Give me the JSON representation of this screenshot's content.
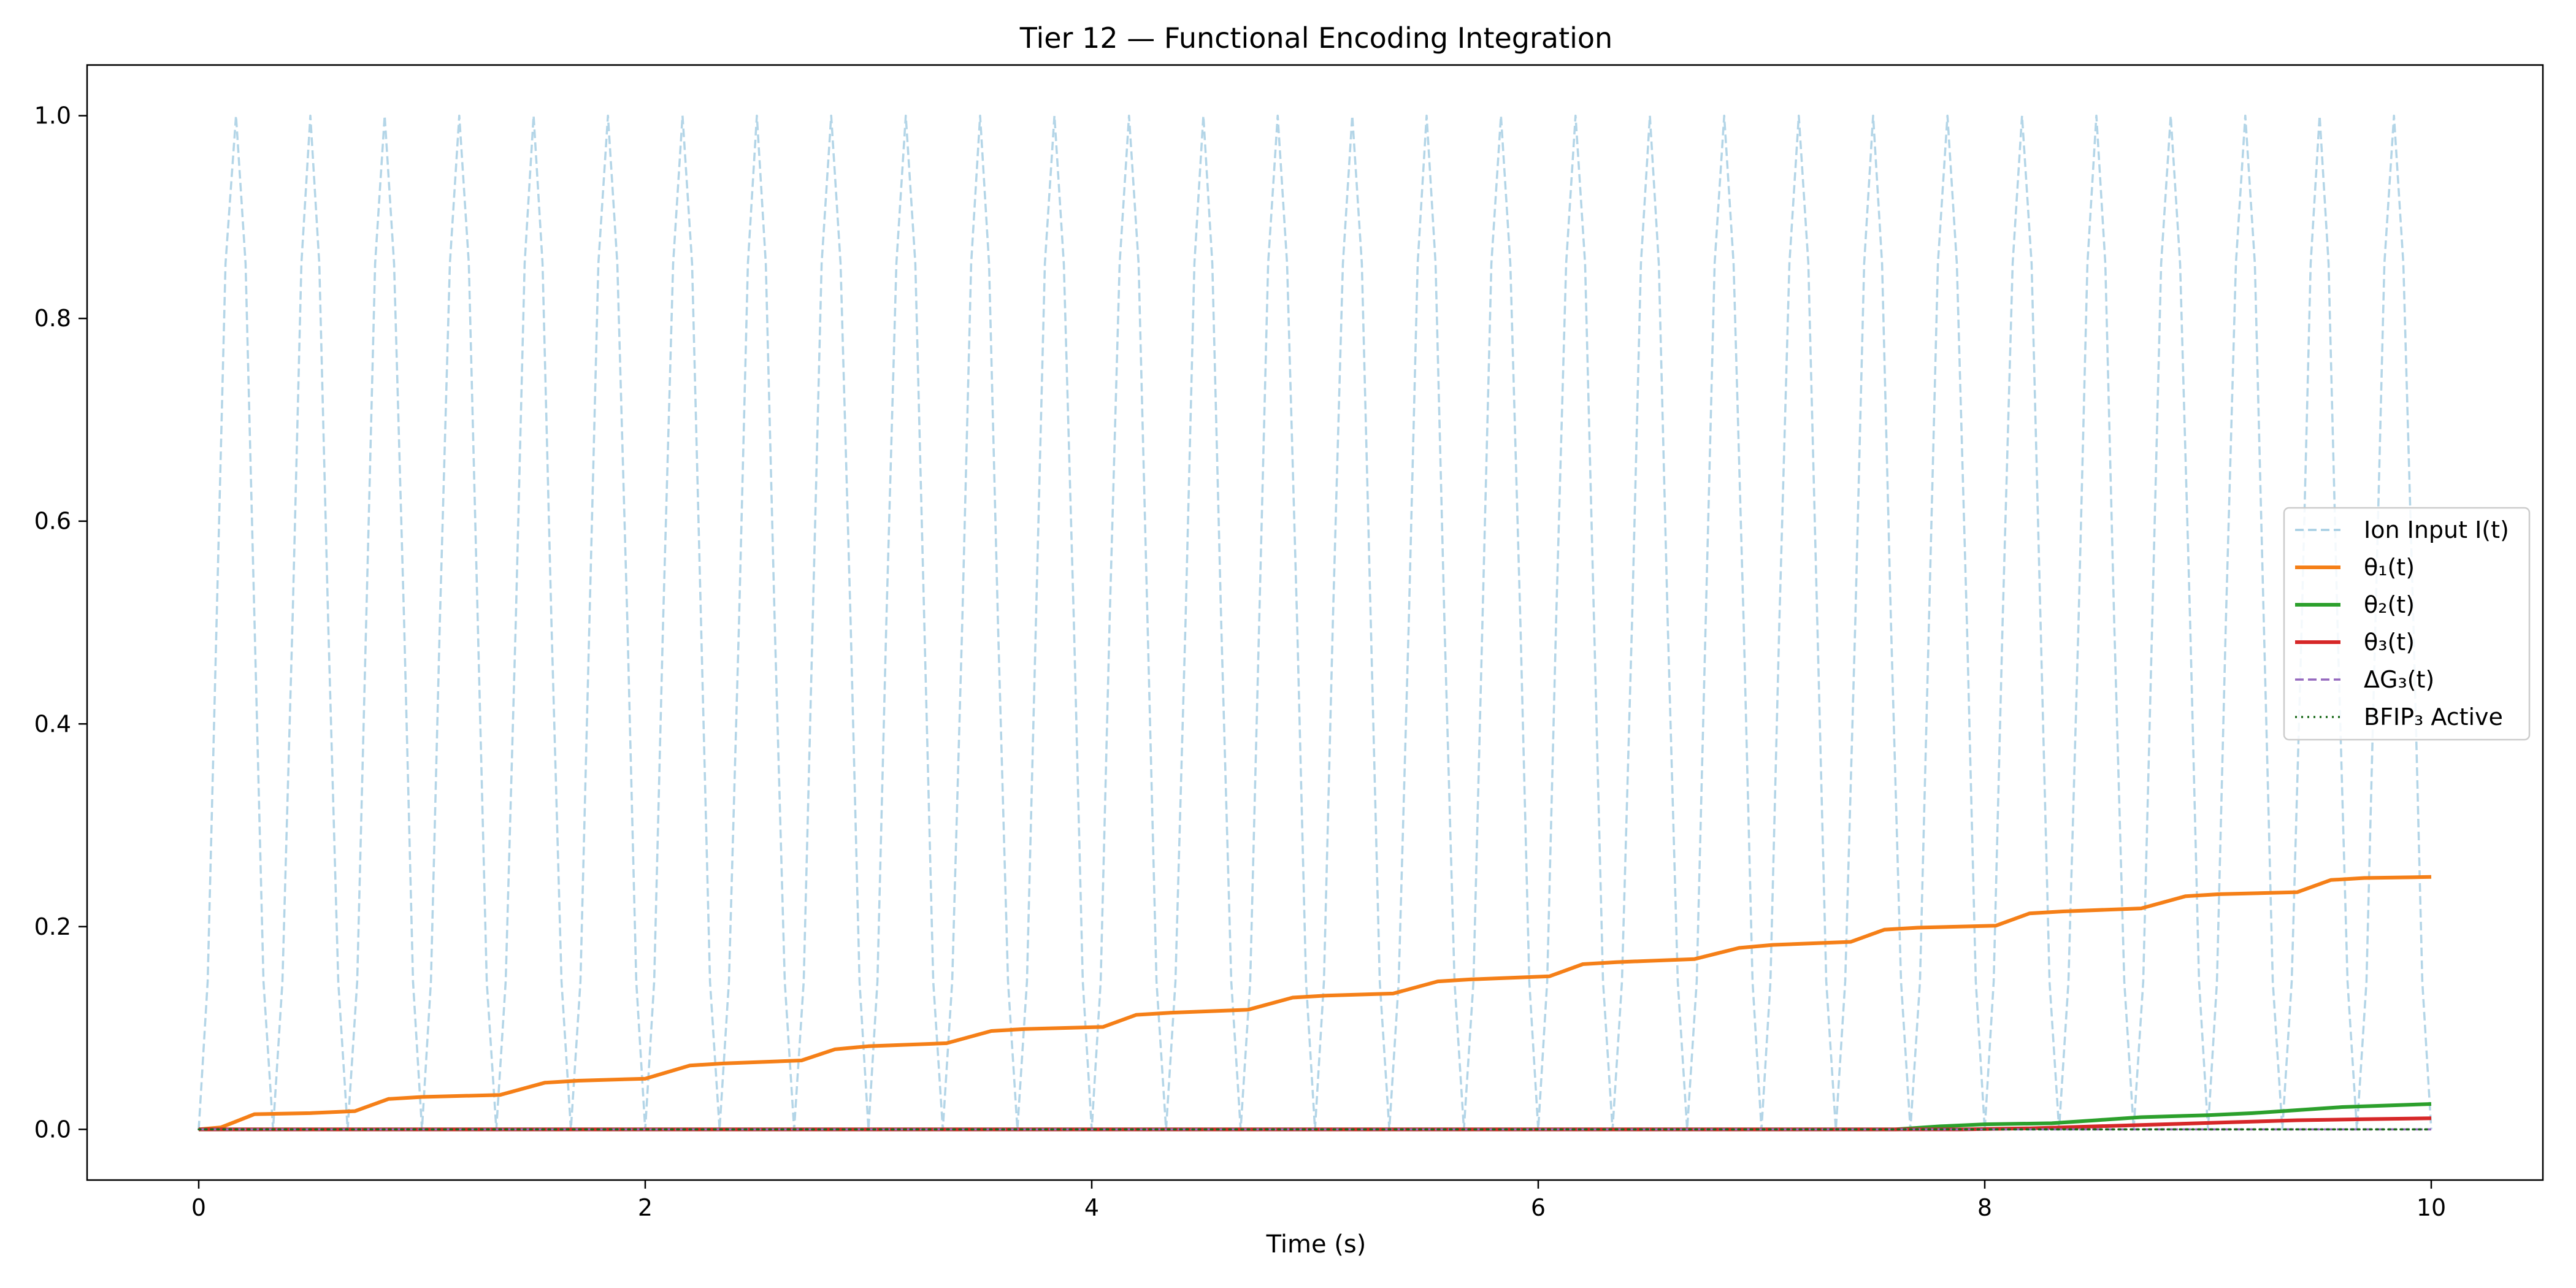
{
  "chart_data": {
    "type": "line",
    "title": "Tier 12 — Functional Encoding Integration",
    "xlabel": "Time (s)",
    "ylabel": "",
    "xlim": [
      -0.5,
      10.5
    ],
    "ylim": [
      -0.05,
      1.05
    ],
    "xticks": [
      0,
      2,
      4,
      6,
      8,
      10
    ],
    "xtick_labels": [
      "0",
      "2",
      "4",
      "6",
      "8",
      "10"
    ],
    "yticks": [
      0.0,
      0.2,
      0.4,
      0.6,
      0.8,
      1.0
    ],
    "ytick_labels": [
      "0.0",
      "0.2",
      "0.4",
      "0.6",
      "0.8",
      "1.0"
    ],
    "legend_position": "center-right",
    "series": [
      {
        "name": "Ion Input I(t)",
        "color": "#a6cee3",
        "style": "dashed",
        "x": [
          0.0,
          0.04,
          0.08,
          0.12,
          0.167,
          0.21,
          0.25,
          0.29,
          0.333,
          0.375,
          0.42,
          0.46,
          0.5,
          0.54,
          0.58,
          0.625,
          0.667,
          0.71,
          0.75,
          0.79,
          0.833,
          0.875,
          0.92,
          0.96,
          1.0,
          1.04,
          1.08,
          1.125,
          1.167,
          1.21,
          1.25,
          1.29,
          1.333,
          1.375,
          1.42,
          1.46,
          1.5,
          1.54,
          1.58,
          1.625,
          1.667,
          1.71,
          1.75,
          1.79,
          1.833,
          1.875,
          1.92,
          1.96,
          2.0,
          2.04,
          2.08,
          2.125,
          2.167,
          2.21,
          2.25,
          2.29,
          2.333,
          2.375,
          2.42,
          2.46,
          2.5,
          2.54,
          2.58,
          2.625,
          2.667,
          2.71,
          2.75,
          2.79,
          2.833,
          2.875,
          2.92,
          2.96,
          3.0,
          3.04,
          3.08,
          3.125,
          3.167,
          3.21,
          3.25,
          3.29,
          3.333,
          3.375,
          3.42,
          3.46,
          3.5,
          3.54,
          3.58,
          3.625,
          3.667,
          3.71,
          3.75,
          3.79,
          3.833,
          3.875,
          3.92,
          3.96,
          4.0,
          4.04,
          4.08,
          4.125,
          4.167,
          4.21,
          4.25,
          4.29,
          4.333,
          4.375,
          4.42,
          4.46,
          4.5,
          4.54,
          4.58,
          4.625,
          4.667,
          4.71,
          4.75,
          4.79,
          4.833,
          4.875,
          4.92,
          4.96,
          5.0,
          5.04,
          5.08,
          5.125,
          5.167,
          5.21,
          5.25,
          5.29,
          5.333,
          5.375,
          5.42,
          5.46,
          5.5,
          5.54,
          5.58,
          5.625,
          5.667,
          5.71,
          5.75,
          5.79,
          5.833,
          5.875,
          5.92,
          5.96,
          6.0,
          6.04,
          6.08,
          6.125,
          6.167,
          6.21,
          6.25,
          6.29,
          6.333,
          6.375,
          6.42,
          6.46,
          6.5,
          6.54,
          6.58,
          6.625,
          6.667,
          6.71,
          6.75,
          6.79,
          6.833,
          6.875,
          6.92,
          6.96,
          7.0,
          7.04,
          7.08,
          7.125,
          7.167,
          7.21,
          7.25,
          7.29,
          7.333,
          7.375,
          7.42,
          7.46,
          7.5,
          7.54,
          7.58,
          7.625,
          7.667,
          7.71,
          7.75,
          7.79,
          7.833,
          7.875,
          7.92,
          7.96,
          8.0,
          8.04,
          8.08,
          8.125,
          8.167,
          8.21,
          8.25,
          8.29,
          8.333,
          8.375,
          8.42,
          8.46,
          8.5,
          8.54,
          8.58,
          8.625,
          8.667,
          8.71,
          8.75,
          8.79,
          8.833,
          8.875,
          8.92,
          8.96,
          9.0,
          9.04,
          9.08,
          9.125,
          9.167,
          9.21,
          9.25,
          9.29,
          9.333,
          9.375,
          9.42,
          9.46,
          9.5,
          9.54,
          9.58,
          9.625,
          9.667,
          9.71,
          9.75,
          9.79,
          9.833,
          9.875,
          9.92,
          9.96,
          10.0
        ],
        "y": [
          0.0,
          0.146,
          0.5,
          0.854,
          1.0,
          0.854,
          0.5,
          0.146,
          0.0,
          0.146,
          0.5,
          0.854,
          1.0,
          0.854,
          0.5,
          0.146,
          0.0,
          0.146,
          0.5,
          0.854,
          1.0,
          0.854,
          0.5,
          0.146,
          0.0,
          0.146,
          0.5,
          0.854,
          1.0,
          0.854,
          0.5,
          0.146,
          0.0,
          0.146,
          0.5,
          0.854,
          1.0,
          0.854,
          0.5,
          0.146,
          0.0,
          0.146,
          0.5,
          0.854,
          1.0,
          0.854,
          0.5,
          0.146,
          0.0,
          0.146,
          0.5,
          0.854,
          1.0,
          0.854,
          0.5,
          0.146,
          0.0,
          0.146,
          0.5,
          0.854,
          1.0,
          0.854,
          0.5,
          0.146,
          0.0,
          0.146,
          0.5,
          0.854,
          1.0,
          0.854,
          0.5,
          0.146,
          0.0,
          0.146,
          0.5,
          0.854,
          1.0,
          0.854,
          0.5,
          0.146,
          0.0,
          0.146,
          0.5,
          0.854,
          1.0,
          0.854,
          0.5,
          0.146,
          0.0,
          0.146,
          0.5,
          0.854,
          1.0,
          0.854,
          0.5,
          0.146,
          0.0,
          0.146,
          0.5,
          0.854,
          1.0,
          0.854,
          0.5,
          0.146,
          0.0,
          0.146,
          0.5,
          0.854,
          1.0,
          0.854,
          0.5,
          0.146,
          0.0,
          0.146,
          0.5,
          0.854,
          1.0,
          0.854,
          0.5,
          0.146,
          0.0,
          0.146,
          0.5,
          0.854,
          1.0,
          0.854,
          0.5,
          0.146,
          0.0,
          0.146,
          0.5,
          0.854,
          1.0,
          0.854,
          0.5,
          0.146,
          0.0,
          0.146,
          0.5,
          0.854,
          1.0,
          0.854,
          0.5,
          0.146,
          0.0,
          0.146,
          0.5,
          0.854,
          1.0,
          0.854,
          0.5,
          0.146,
          0.0,
          0.146,
          0.5,
          0.854,
          1.0,
          0.854,
          0.5,
          0.146,
          0.0,
          0.146,
          0.5,
          0.854,
          1.0,
          0.854,
          0.5,
          0.146,
          0.0,
          0.146,
          0.5,
          0.854,
          1.0,
          0.854,
          0.5,
          0.146,
          0.0,
          0.146,
          0.5,
          0.854,
          1.0,
          0.854,
          0.5,
          0.146,
          0.0,
          0.146,
          0.5,
          0.854,
          1.0,
          0.854,
          0.5,
          0.146,
          0.0,
          0.146,
          0.5,
          0.854,
          1.0,
          0.854,
          0.5,
          0.146,
          0.0,
          0.146,
          0.5,
          0.854,
          1.0,
          0.854,
          0.5,
          0.146,
          0.0,
          0.146,
          0.5,
          0.854,
          1.0,
          0.854,
          0.5,
          0.146,
          0.0,
          0.146,
          0.5,
          0.854,
          1.0,
          0.854,
          0.5,
          0.146,
          0.0,
          0.146,
          0.5,
          0.854,
          1.0,
          0.854,
          0.5,
          0.146,
          0.0,
          0.146,
          0.5,
          0.854,
          1.0,
          0.854,
          0.5,
          0.146,
          0.0
        ]
      },
      {
        "name": "θ₁(t)",
        "color": "#f57f17",
        "style": "solid",
        "x": [
          0.0,
          0.1,
          0.25,
          0.5,
          0.7,
          0.85,
          1.0,
          1.35,
          1.55,
          1.7,
          2.0,
          2.2,
          2.35,
          2.7,
          2.85,
          3.0,
          3.35,
          3.55,
          3.7,
          4.05,
          4.2,
          4.35,
          4.7,
          4.9,
          5.05,
          5.35,
          5.55,
          5.7,
          6.05,
          6.2,
          6.35,
          6.7,
          6.9,
          7.05,
          7.4,
          7.55,
          7.7,
          8.05,
          8.2,
          8.35,
          8.7,
          8.9,
          9.05,
          9.4,
          9.55,
          9.7,
          10.0
        ],
        "y": [
          0.0,
          0.002,
          0.015,
          0.016,
          0.018,
          0.03,
          0.032,
          0.034,
          0.046,
          0.048,
          0.05,
          0.063,
          0.065,
          0.068,
          0.079,
          0.082,
          0.085,
          0.097,
          0.099,
          0.101,
          0.113,
          0.115,
          0.118,
          0.13,
          0.132,
          0.134,
          0.146,
          0.148,
          0.151,
          0.163,
          0.165,
          0.168,
          0.179,
          0.182,
          0.185,
          0.197,
          0.199,
          0.201,
          0.213,
          0.215,
          0.218,
          0.23,
          0.232,
          0.234,
          0.246,
          0.248,
          0.249
        ]
      },
      {
        "name": "θ₂(t)",
        "color": "#2ca02c",
        "style": "solid",
        "x": [
          0.0,
          7.6,
          7.8,
          8.0,
          8.3,
          8.5,
          8.7,
          9.0,
          9.2,
          9.4,
          9.6,
          10.0
        ],
        "y": [
          0.0,
          0.0,
          0.003,
          0.005,
          0.006,
          0.009,
          0.012,
          0.014,
          0.016,
          0.019,
          0.022,
          0.025
        ]
      },
      {
        "name": "θ₃(t)",
        "color": "#d62728",
        "style": "solid",
        "x": [
          0.0,
          7.9,
          8.2,
          8.5,
          8.8,
          9.1,
          9.4,
          9.7,
          10.0
        ],
        "y": [
          0.0,
          0.0,
          0.001,
          0.003,
          0.005,
          0.007,
          0.009,
          0.01,
          0.011
        ]
      },
      {
        "name": "ΔG₃(t)",
        "color": "#9467bd",
        "style": "dashed",
        "x": [
          0.0,
          10.0
        ],
        "y": [
          0.0,
          0.0
        ]
      },
      {
        "name": "BFIP₃ Active",
        "color": "#1b6b1b",
        "style": "dotted",
        "x": [
          0.0,
          10.0
        ],
        "y": [
          0.0,
          0.0
        ]
      }
    ]
  }
}
